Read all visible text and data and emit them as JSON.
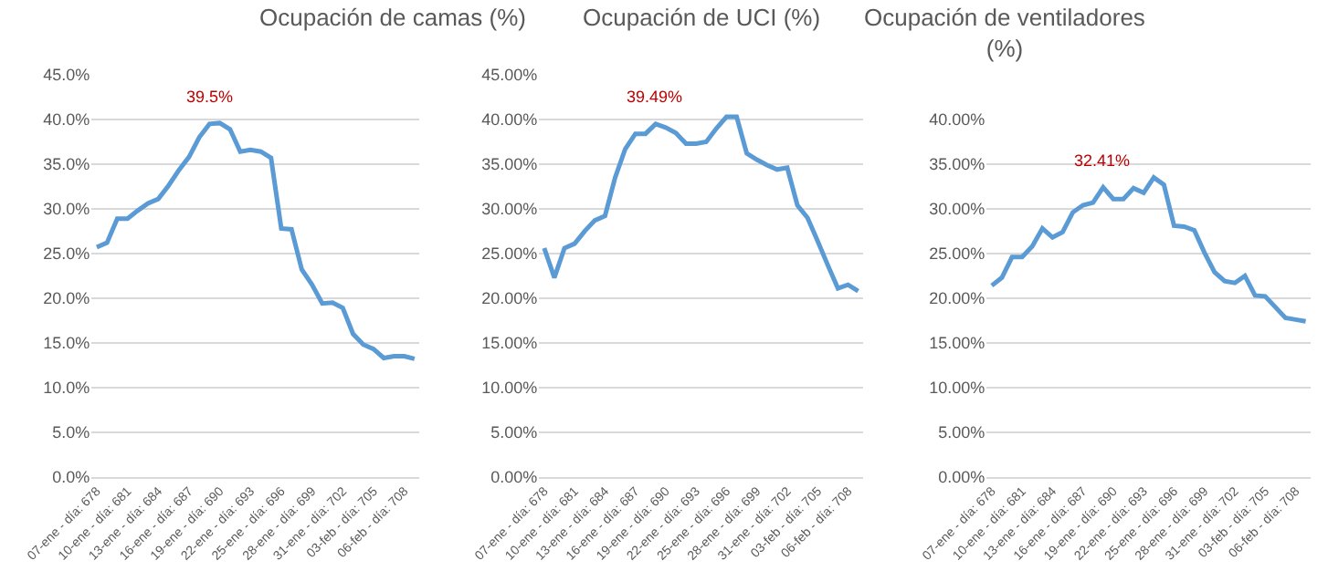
{
  "chart_data": [
    {
      "type": "line",
      "title": "Ocupación de camas (%)",
      "categories": [
        "07-ene - día: 678",
        null,
        null,
        "10-ene - día: 681",
        null,
        null,
        "13-ene - día: 684",
        null,
        null,
        "16-ene - día: 687",
        null,
        null,
        "19-ene - día: 690",
        null,
        null,
        "22-ene - día: 693",
        null,
        null,
        "25-ene - día: 696",
        null,
        null,
        "28-ene - día: 699",
        null,
        null,
        "31-ene - día: 702",
        null,
        null,
        "03-feb - día: 705",
        null,
        null,
        "06-feb - día: 708",
        null
      ],
      "series": [
        {
          "color": "#5b9bd5",
          "values": [
            25.7,
            26.2,
            28.9,
            28.9,
            29.8,
            30.6,
            31.1,
            32.6,
            34.3,
            35.8,
            38.0,
            39.5,
            39.6,
            38.9,
            36.4,
            36.6,
            36.4,
            35.7,
            27.8,
            27.7,
            23.2,
            21.5,
            19.4,
            19.5,
            18.9,
            16.0,
            14.8,
            14.3,
            13.3,
            13.5,
            13.5,
            13.2
          ],
          "value_labels": [
            null,
            null,
            null,
            null,
            null,
            null,
            null,
            null,
            null,
            null,
            null,
            "39.5%",
            null,
            null,
            null,
            null,
            null,
            null,
            null,
            null,
            null,
            null,
            null,
            null,
            null,
            null,
            null,
            null,
            null,
            null,
            null,
            null
          ]
        }
      ],
      "ylim": [
        0,
        45
      ],
      "yticks": [
        {
          "value": 0,
          "label": "0.0%"
        },
        {
          "value": 5,
          "label": "5.0%"
        },
        {
          "value": 10,
          "label": "10.0%"
        },
        {
          "value": 15,
          "label": "15.0%"
        },
        {
          "value": 20,
          "label": "20.0%"
        },
        {
          "value": 25,
          "label": "25.0%"
        },
        {
          "value": 30,
          "label": "30.0%"
        },
        {
          "value": 35,
          "label": "35.0%"
        },
        {
          "value": 40,
          "label": "40.0%"
        },
        {
          "value": 45,
          "label": "45.0%"
        }
      ],
      "grid": "y",
      "marker": "none",
      "line_style": "solid"
    },
    {
      "type": "line",
      "title": "Ocupación de UCI (%)",
      "categories": [
        "07-ene - día: 678",
        null,
        null,
        "10-ene - día: 681",
        null,
        null,
        "13-ene - día: 684",
        null,
        null,
        "16-ene - día: 687",
        null,
        null,
        "19-ene - día: 690",
        null,
        null,
        "22-ene - día: 693",
        null,
        null,
        "25-ene - día: 696",
        null,
        null,
        "28-ene - día: 699",
        null,
        null,
        "31-ene - día: 702",
        null,
        null,
        "03-feb - día: 705",
        null,
        null,
        "06-feb - día: 708",
        null
      ],
      "series": [
        {
          "color": "#5b9bd5",
          "values": [
            25.6,
            22.3,
            25.6,
            26.1,
            27.5,
            28.7,
            29.2,
            33.5,
            36.7,
            38.4,
            38.4,
            39.49,
            39.1,
            38.5,
            37.3,
            37.3,
            37.5,
            39.0,
            40.3,
            40.3,
            36.2,
            35.5,
            34.9,
            34.4,
            34.6,
            30.4,
            29.0,
            26.4,
            23.7,
            21.1,
            21.5,
            20.8
          ],
          "value_labels": [
            null,
            null,
            null,
            null,
            null,
            null,
            null,
            null,
            null,
            null,
            null,
            "39.49%",
            null,
            null,
            null,
            null,
            null,
            null,
            null,
            null,
            null,
            null,
            null,
            null,
            null,
            null,
            null,
            null,
            null,
            null,
            null,
            null
          ]
        }
      ],
      "ylim": [
        0,
        45
      ],
      "yticks": [
        {
          "value": 0,
          "label": "0.00%"
        },
        {
          "value": 5,
          "label": "5.00%"
        },
        {
          "value": 10,
          "label": "10.00%"
        },
        {
          "value": 15,
          "label": "15.00%"
        },
        {
          "value": 20,
          "label": "20.00%"
        },
        {
          "value": 25,
          "label": "25.00%"
        },
        {
          "value": 30,
          "label": "30.00%"
        },
        {
          "value": 35,
          "label": "35.00%"
        },
        {
          "value": 40,
          "label": "40.00%"
        },
        {
          "value": 45,
          "label": "45.00%"
        }
      ],
      "grid": "y",
      "marker": "none",
      "line_style": "solid"
    },
    {
      "type": "line",
      "title": "Ocupación de ventiladores (%)",
      "categories": [
        "07-ene - día: 678",
        null,
        null,
        "10-ene - día: 681",
        null,
        null,
        "13-ene - día: 684",
        null,
        null,
        "16-ene - día: 687",
        null,
        null,
        "19-ene - día: 690",
        null,
        null,
        "22-ene - día: 693",
        null,
        null,
        "25-ene - día: 696",
        null,
        null,
        "28-ene - día: 699",
        null,
        null,
        "31-ene - día: 702",
        null,
        null,
        "03-feb - día: 705",
        null,
        null,
        "06-feb - día: 708",
        null
      ],
      "series": [
        {
          "color": "#5b9bd5",
          "values": [
            21.4,
            22.3,
            24.6,
            24.6,
            25.8,
            27.8,
            26.8,
            27.4,
            29.6,
            30.4,
            30.7,
            32.41,
            31.1,
            31.1,
            32.3,
            31.8,
            33.5,
            32.7,
            28.1,
            28.0,
            27.6,
            25.1,
            22.9,
            21.9,
            21.7,
            22.5,
            20.3,
            20.2,
            19.0,
            17.8,
            17.6,
            17.4
          ],
          "value_labels": [
            null,
            null,
            null,
            null,
            null,
            null,
            null,
            null,
            null,
            null,
            null,
            "32.41%",
            null,
            null,
            null,
            null,
            null,
            null,
            null,
            null,
            null,
            null,
            null,
            null,
            null,
            null,
            null,
            null,
            null,
            null,
            null,
            null
          ]
        }
      ],
      "ylim": [
        0,
        40
      ],
      "yticks": [
        {
          "value": 0,
          "label": "0.00%"
        },
        {
          "value": 5,
          "label": "5.00%"
        },
        {
          "value": 10,
          "label": "10.00%"
        },
        {
          "value": 15,
          "label": "15.00%"
        },
        {
          "value": 20,
          "label": "20.00%"
        },
        {
          "value": 25,
          "label": "25.00%"
        },
        {
          "value": 30,
          "label": "30.00%"
        },
        {
          "value": 35,
          "label": "35.00%"
        },
        {
          "value": 40,
          "label": "40.00%"
        }
      ],
      "grid": "y",
      "marker": "none",
      "line_style": "solid"
    }
  ]
}
